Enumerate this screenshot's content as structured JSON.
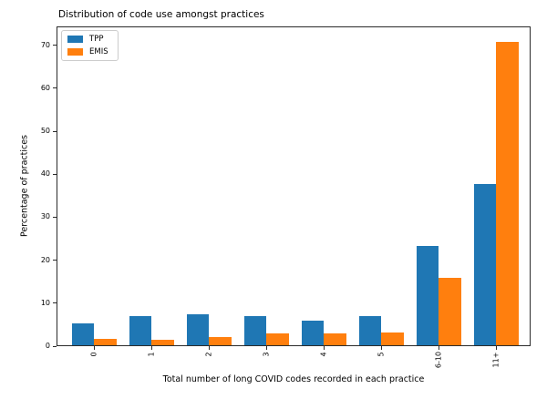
{
  "chart_data": {
    "type": "bar",
    "title": "Distribution of code use amongst practices",
    "xlabel": "Total number of long COVID codes recorded in each practice",
    "ylabel": "Percentage of practices",
    "categories": [
      "0",
      "1",
      "2",
      "3",
      "4",
      "5",
      "6-10",
      "11+"
    ],
    "series": [
      {
        "name": "TPP",
        "color": "#1f77b4",
        "values": [
          5.4,
          6.9,
          7.5,
          6.9,
          6.0,
          7.1,
          23.4,
          37.8
        ]
      },
      {
        "name": "EMIS",
        "color": "#ff7f0e",
        "values": [
          1.8,
          1.4,
          2.1,
          2.9,
          2.9,
          3.2,
          16.0,
          70.9
        ]
      }
    ],
    "yticks": [
      0,
      10,
      20,
      30,
      40,
      50,
      60,
      70
    ],
    "ylim": [
      0,
      74.4
    ],
    "grid": false,
    "legend_position": "upper left",
    "x_tick_rotation": 90
  }
}
